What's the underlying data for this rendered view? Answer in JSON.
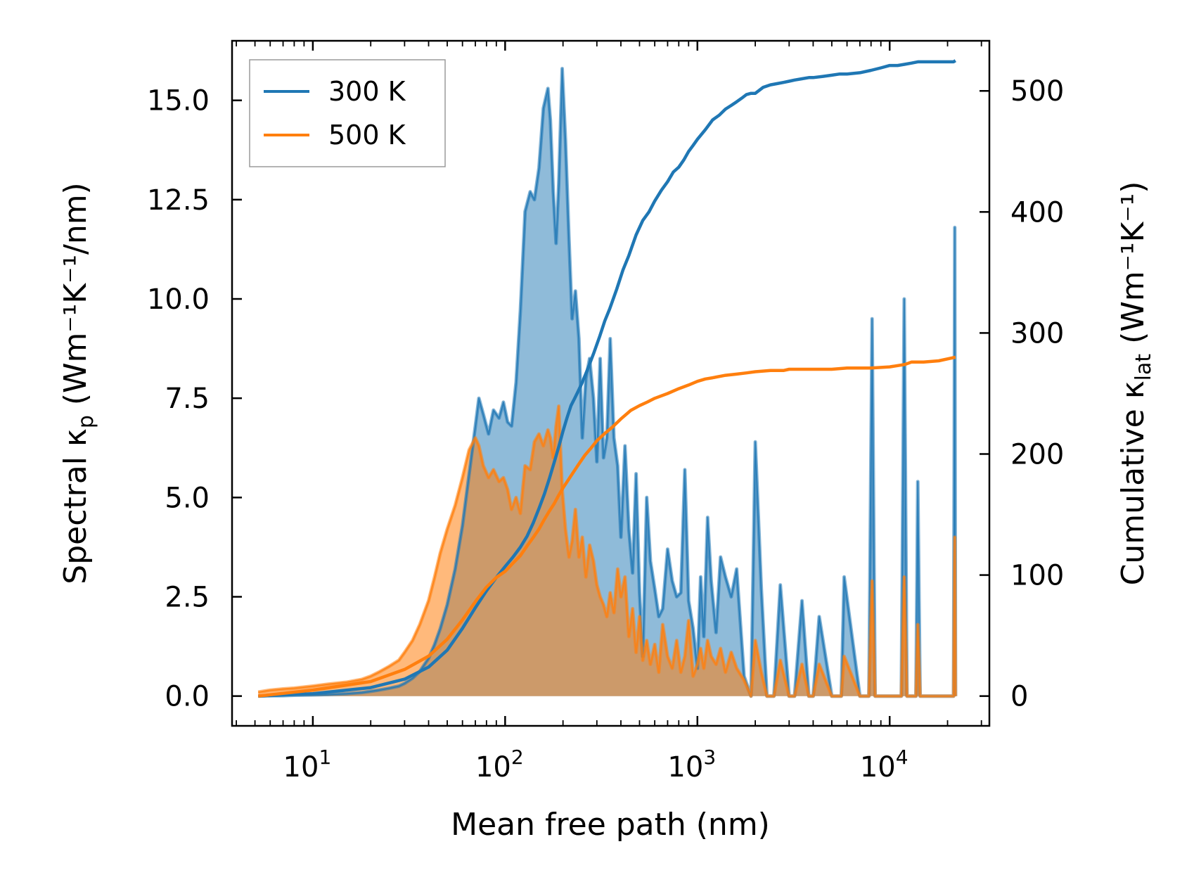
{
  "chart_data": {
    "type": "line",
    "xscale": "log",
    "xlabel": "Mean free path (nm)",
    "ylabel_left": {
      "main": "Spectral κ",
      "sub": "p",
      "unit": " (Wm⁻¹K⁻¹/nm)"
    },
    "ylabel_right": {
      "main": "Cumulative κ",
      "sub": "lat",
      "unit": " (Wm⁻¹K⁻¹)"
    },
    "xlim": [
      3.8,
      33000
    ],
    "ylim_left": [
      -0.75,
      16.5
    ],
    "ylim_right": [
      -24.6,
      541.4
    ],
    "x_ticks": [
      {
        "value": 10,
        "base": "10",
        "exp": "1"
      },
      {
        "value": 100,
        "base": "10",
        "exp": "2"
      },
      {
        "value": 1000,
        "base": "10",
        "exp": "3"
      },
      {
        "value": 10000,
        "base": "10",
        "exp": "4"
      }
    ],
    "y_left_ticks": [
      {
        "value": 0,
        "label": "0.0"
      },
      {
        "value": 2.5,
        "label": "2.5"
      },
      {
        "value": 5,
        "label": "5.0"
      },
      {
        "value": 7.5,
        "label": "7.5"
      },
      {
        "value": 10,
        "label": "10.0"
      },
      {
        "value": 12.5,
        "label": "12.5"
      },
      {
        "value": 15,
        "label": "15.0"
      }
    ],
    "y_right_ticks": [
      {
        "value": 0,
        "label": "0"
      },
      {
        "value": 100,
        "label": "100"
      },
      {
        "value": 200,
        "label": "200"
      },
      {
        "value": 300,
        "label": "300"
      },
      {
        "value": 400,
        "label": "400"
      },
      {
        "value": 500,
        "label": "500"
      }
    ],
    "legend": {
      "placement": "top-left",
      "entries": [
        "300 K",
        "500 K"
      ]
    },
    "series": [
      {
        "name": "300 K",
        "color": "#1f77b4",
        "fill_color": "#1f77b4",
        "spectral": {
          "x": [
            5.2,
            6,
            7,
            8,
            10,
            12,
            15,
            18,
            20,
            22,
            25,
            28,
            30,
            33,
            36,
            40,
            43,
            46,
            50,
            55,
            60,
            65,
            70,
            73,
            77,
            82,
            87,
            93,
            98,
            103,
            108,
            114,
            120,
            127,
            135,
            142,
            150,
            158,
            167,
            172,
            178,
            184,
            190,
            198,
            206,
            215,
            223,
            232,
            242,
            252,
            263,
            275,
            288,
            300,
            312,
            325,
            338,
            352,
            368,
            385,
            400,
            420,
            440,
            460,
            480,
            500,
            520,
            545,
            570,
            600,
            630,
            660,
            700,
            740,
            780,
            820,
            860,
            900,
            950,
            1000,
            1040,
            1080,
            1130,
            1180,
            1250,
            1320,
            1400,
            1500,
            1600,
            1750,
            1900,
            2000,
            2150,
            2300,
            2500,
            2700,
            3000,
            3200,
            3500,
            3800,
            4000,
            4300,
            5000,
            5600,
            5800,
            7000,
            7800,
            8100,
            8400,
            10000,
            11500,
            11900,
            12300,
            13000,
            13700,
            14000,
            14400,
            18000,
            21500,
            21800,
            22000
          ],
          "y": [
            0,
            0.01,
            0.01,
            0.02,
            0.03,
            0.04,
            0.06,
            0.09,
            0.12,
            0.15,
            0.2,
            0.25,
            0.32,
            0.45,
            0.62,
            0.95,
            1.3,
            1.7,
            2.3,
            3.2,
            4.3,
            5.6,
            6.8,
            7.5,
            7.1,
            6.6,
            7.2,
            7.0,
            7.4,
            6.9,
            6.8,
            7.9,
            9.7,
            12.2,
            12.7,
            12.5,
            13.3,
            14.8,
            15.3,
            14.5,
            12.7,
            11.4,
            12.9,
            15.8,
            14.0,
            11.5,
            9.5,
            10.2,
            9.0,
            6.5,
            8.0,
            8.5,
            7.5,
            5.9,
            8.5,
            6.0,
            6.5,
            9.0,
            6.5,
            5.8,
            4.0,
            6.3,
            4.2,
            3.1,
            5.6,
            2.6,
            1.0,
            5.0,
            3.4,
            2.7,
            2.0,
            2.2,
            3.7,
            2.9,
            2.5,
            2.6,
            5.7,
            2.4,
            1.7,
            0.7,
            3.0,
            1.5,
            4.5,
            2.9,
            1.6,
            3.5,
            3.0,
            2.5,
            3.2,
            0.5,
            0.0,
            6.4,
            2.7,
            0.0,
            0.0,
            2.8,
            0.0,
            0.0,
            2.4,
            0.0,
            0.0,
            2.0,
            0.0,
            0.0,
            3.0,
            0.0,
            0.0,
            9.5,
            0.0,
            0.0,
            0.0,
            10.0,
            0.0,
            0.0,
            0.0,
            5.4,
            0.0,
            0.0,
            0.0,
            11.8,
            0.0
          ]
        },
        "cumulative": {
          "x": [
            5.2,
            10,
            20,
            30,
            40,
            50,
            60,
            70,
            80,
            90,
            100,
            110,
            120,
            130,
            140,
            150,
            160,
            170,
            180,
            190,
            200,
            210,
            220,
            230,
            240,
            250,
            270,
            290,
            310,
            330,
            350,
            380,
            410,
            440,
            480,
            520,
            560,
            600,
            650,
            700,
            750,
            800,
            850,
            900,
            950,
            1000,
            1100,
            1200,
            1300,
            1400,
            1500,
            1600,
            1700,
            1800,
            1900,
            2000,
            2200,
            2400,
            2600,
            2800,
            3000,
            3200,
            3500,
            3800,
            4000,
            4500,
            5000,
            5500,
            6000,
            7000,
            8000,
            9000,
            10000,
            11000,
            12000,
            13000,
            14000,
            15000,
            18000,
            20000,
            21500,
            22000
          ],
          "y": [
            0,
            2,
            7,
            14,
            24,
            38,
            56,
            73,
            87,
            98,
            107,
            115,
            123,
            132,
            143,
            155,
            167,
            180,
            193,
            206,
            219,
            230,
            240,
            246,
            252,
            258,
            271,
            284,
            297,
            310,
            320,
            336,
            352,
            364,
            381,
            393,
            400,
            409,
            418,
            425,
            433,
            437,
            443,
            450,
            455,
            460,
            468,
            476,
            480,
            485,
            488,
            491,
            494,
            497,
            498,
            498,
            503,
            505,
            506,
            507,
            508,
            509,
            510,
            511,
            511,
            512,
            513,
            514,
            514,
            515,
            517,
            519,
            521,
            521,
            522,
            523,
            524,
            524,
            524,
            524,
            524,
            525
          ]
        }
      },
      {
        "name": "500 K",
        "color": "#ff7f0e",
        "fill_color": "#ff7f0e",
        "spectral": {
          "x": [
            5.2,
            6,
            7,
            8,
            10,
            12,
            15,
            18,
            20,
            22,
            25,
            28,
            30,
            33,
            36,
            40,
            43,
            46,
            50,
            55,
            60,
            65,
            70,
            73,
            77,
            82,
            87,
            93,
            98,
            103,
            108,
            114,
            120,
            127,
            135,
            142,
            150,
            158,
            167,
            172,
            178,
            184,
            190,
            198,
            206,
            215,
            223,
            232,
            242,
            252,
            263,
            275,
            288,
            300,
            312,
            325,
            338,
            352,
            368,
            385,
            400,
            420,
            440,
            460,
            480,
            500,
            520,
            545,
            570,
            600,
            630,
            660,
            700,
            740,
            780,
            820,
            860,
            900,
            950,
            1000,
            1040,
            1080,
            1130,
            1180,
            1250,
            1320,
            1400,
            1500,
            1600,
            1750,
            1900,
            2000,
            2150,
            2300,
            2500,
            2700,
            3000,
            3200,
            3500,
            3800,
            4000,
            4300,
            5000,
            5600,
            5800,
            7000,
            7800,
            8100,
            8400,
            10000,
            11500,
            11900,
            12300,
            13000,
            13700,
            14000,
            14400,
            18000,
            21500,
            21800,
            22000
          ],
          "y": [
            0.1,
            0.15,
            0.18,
            0.2,
            0.25,
            0.3,
            0.35,
            0.42,
            0.5,
            0.6,
            0.75,
            0.9,
            1.1,
            1.4,
            1.8,
            2.4,
            3.0,
            3.6,
            4.2,
            4.8,
            5.5,
            6.2,
            6.5,
            6.3,
            5.8,
            5.5,
            5.7,
            5.4,
            5.5,
            5.2,
            4.7,
            5.0,
            4.6,
            5.8,
            5.7,
            6.4,
            6.6,
            6.3,
            6.7,
            6.5,
            6.0,
            6.8,
            7.3,
            5.2,
            4.2,
            3.5,
            3.9,
            4.7,
            3.5,
            4.0,
            3.0,
            3.8,
            3.4,
            2.8,
            2.5,
            2.3,
            2.0,
            2.6,
            2.1,
            3.2,
            2.5,
            3.0,
            1.5,
            2.2,
            1.1,
            2.0,
            0.9,
            1.4,
            0.8,
            1.3,
            0.6,
            1.8,
            1.0,
            0.7,
            1.4,
            0.6,
            1.0,
            1.9,
            0.5,
            0.8,
            1.2,
            0.7,
            1.4,
            1.0,
            0.8,
            1.2,
            0.6,
            1.1,
            0.7,
            0.4,
            0.0,
            1.4,
            0.6,
            0.0,
            0.0,
            0.9,
            0.0,
            0.0,
            0.8,
            0.0,
            0.0,
            0.8,
            0.0,
            0.0,
            1.0,
            0.0,
            0.0,
            2.9,
            0.0,
            0.0,
            0.0,
            3.0,
            0.0,
            0.0,
            0.0,
            1.8,
            0.0,
            0.0,
            0.0,
            4.0,
            0.0
          ]
        },
        "cumulative": {
          "x": [
            5.2,
            10,
            20,
            30,
            40,
            50,
            60,
            70,
            80,
            90,
            100,
            110,
            120,
            130,
            140,
            150,
            160,
            170,
            180,
            190,
            200,
            220,
            240,
            260,
            280,
            300,
            330,
            360,
            400,
            450,
            500,
            550,
            600,
            700,
            800,
            900,
            1000,
            1100,
            1200,
            1400,
            1600,
            1800,
            2000,
            2400,
            2800,
            3000,
            3500,
            4000,
            5000,
            6000,
            8000,
            10000,
            12000,
            13000,
            15000,
            18000,
            22000
          ],
          "y": [
            0,
            5,
            12,
            22,
            33,
            47,
            63,
            78,
            90,
            98,
            103,
            110,
            116,
            124,
            131,
            138,
            146,
            153,
            159,
            166,
            172,
            182,
            191,
            199,
            205,
            211,
            217,
            222,
            229,
            236,
            240,
            243,
            246,
            250,
            254,
            257,
            260,
            262,
            263,
            265,
            266,
            267,
            268,
            269,
            269,
            270,
            270,
            270,
            270,
            271,
            271,
            272,
            274,
            276,
            276,
            277,
            280
          ]
        }
      }
    ]
  }
}
